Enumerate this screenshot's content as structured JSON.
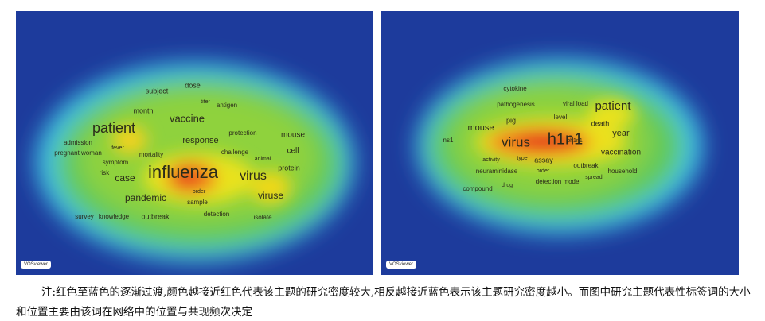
{
  "maps": [
    {
      "badge": "VOSviewer",
      "words": [
        "influenza",
        "patient",
        "virus",
        "vaccine",
        "case",
        "pandemic",
        "viruse",
        "response",
        "mouse",
        "cell",
        "protein",
        "month",
        "subject",
        "dose",
        "titer",
        "antigen",
        "protection",
        "mortality",
        "symptom",
        "risk",
        "admission",
        "pregnant woman",
        "fever",
        "challenge",
        "sample",
        "detection",
        "isolate",
        "outbreak",
        "survey",
        "knowledge",
        "order",
        "animal"
      ]
    },
    {
      "badge": "VOSviewer",
      "words": [
        "h1n1",
        "virus",
        "patient",
        "mouse",
        "year",
        "vaccination",
        "pig",
        "death",
        "level",
        "pathogenesis",
        "cytokine",
        "viral load",
        "outbreak",
        "assay",
        "type",
        "neuraminidase",
        "detection model",
        "compound",
        "drug",
        "household",
        "spread",
        "activity",
        "ns1",
        "order",
        "ph1n1"
      ]
    }
  ],
  "caption": "注:红色至蓝色的逐渐过渡,颜色越接近红色代表该主题的研究密度较大,相反越接近蓝色表示该主题研究密度越小。而图中研究主题代表性标签词的大小和位置主要由该词在网络中的位置与共现频次决定"
}
